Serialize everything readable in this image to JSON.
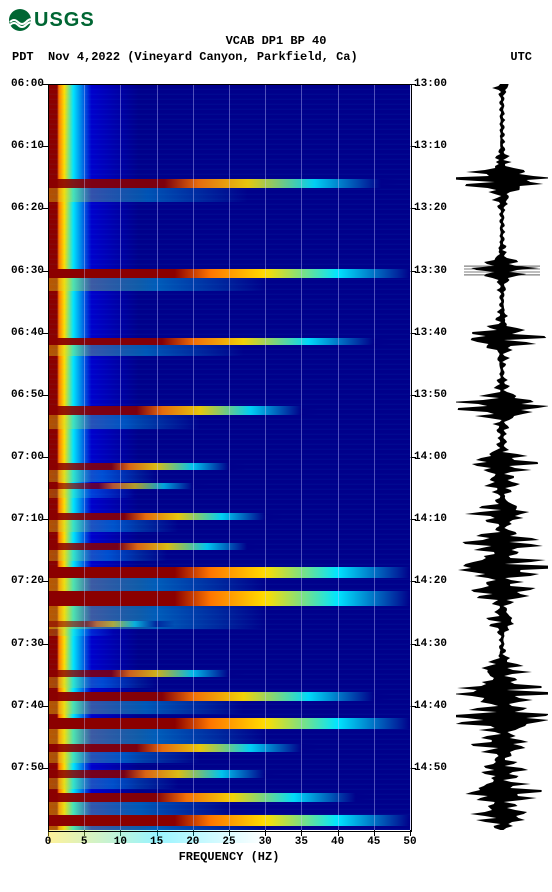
{
  "logo": {
    "text": "USGS",
    "color": "#006633"
  },
  "title": "VCAB DP1 BP 40",
  "subtitle": {
    "tz_left": "PDT",
    "date": "Nov 4,2022 (Vineyard Canyon, Parkfield, Ca)",
    "tz_right": "UTC"
  },
  "axes": {
    "xlabel": "FREQUENCY (HZ)",
    "xmin": 0,
    "xmax": 50,
    "xticks": [
      0,
      5,
      10,
      15,
      20,
      25,
      30,
      35,
      40,
      45,
      50
    ],
    "y_left_ticks": [
      "06:00",
      "06:10",
      "06:20",
      "06:30",
      "06:40",
      "06:50",
      "07:00",
      "07:10",
      "07:20",
      "07:30",
      "07:40",
      "07:50"
    ],
    "y_right_ticks": [
      "13:00",
      "13:10",
      "13:20",
      "13:30",
      "13:40",
      "13:50",
      "14:00",
      "14:10",
      "14:20",
      "14:30",
      "14:40",
      "14:50"
    ],
    "y_positions_pct": [
      0,
      8.33,
      16.67,
      25,
      33.33,
      41.67,
      50,
      58.33,
      66.67,
      75,
      83.33,
      91.67
    ],
    "y_label_fontsize": 11,
    "x_label_fontsize": 12,
    "title_fontsize": 12
  },
  "colors": {
    "bg_deep": "#00008b",
    "bg_mid": "#0000cd",
    "cyan": "#00e5ff",
    "yellow": "#ffdd00",
    "orange": "#ff7700",
    "red": "#8b0000",
    "grid": "#b0b0ff",
    "waveform": "#000000",
    "logo": "#006633"
  },
  "events": [
    {
      "t_pct": 0,
      "height_pct": 100,
      "type": "background"
    },
    {
      "t_pct": 12.8,
      "height_pct": 1.2,
      "intensity": 0.9,
      "reach": 0.92
    },
    {
      "t_pct": 24.8,
      "height_pct": 1.2,
      "intensity": 1.0,
      "reach": 1.0
    },
    {
      "t_pct": 34.0,
      "height_pct": 1.0,
      "intensity": 0.95,
      "reach": 0.9
    },
    {
      "t_pct": 43.2,
      "height_pct": 1.2,
      "intensity": 0.9,
      "reach": 0.7
    },
    {
      "t_pct": 50.8,
      "height_pct": 1.0,
      "intensity": 0.85,
      "reach": 0.5
    },
    {
      "t_pct": 53.5,
      "height_pct": 0.8,
      "intensity": 0.7,
      "reach": 0.4
    },
    {
      "t_pct": 57.5,
      "height_pct": 1.0,
      "intensity": 0.9,
      "reach": 0.6
    },
    {
      "t_pct": 61.5,
      "height_pct": 1.0,
      "intensity": 0.85,
      "reach": 0.55
    },
    {
      "t_pct": 64.8,
      "height_pct": 1.4,
      "intensity": 1.0,
      "reach": 1.0
    },
    {
      "t_pct": 68.0,
      "height_pct": 2.0,
      "intensity": 1.0,
      "reach": 1.0
    },
    {
      "t_pct": 72.0,
      "height_pct": 0.8,
      "intensity": 0.6,
      "reach": 0.3
    },
    {
      "t_pct": 78.5,
      "height_pct": 1.0,
      "intensity": 0.8,
      "reach": 0.5
    },
    {
      "t_pct": 81.5,
      "height_pct": 1.2,
      "intensity": 0.95,
      "reach": 0.9
    },
    {
      "t_pct": 85.0,
      "height_pct": 1.4,
      "intensity": 1.0,
      "reach": 1.0
    },
    {
      "t_pct": 88.5,
      "height_pct": 1.0,
      "intensity": 0.9,
      "reach": 0.7
    },
    {
      "t_pct": 92.0,
      "height_pct": 1.0,
      "intensity": 0.85,
      "reach": 0.6
    },
    {
      "t_pct": 95.0,
      "height_pct": 1.2,
      "intensity": 0.95,
      "reach": 0.85
    },
    {
      "t_pct": 98.0,
      "height_pct": 1.5,
      "intensity": 1.0,
      "reach": 1.0
    }
  ],
  "wave_events": [
    {
      "t_pct": 0,
      "amp": 0.15
    },
    {
      "t_pct": 12.8,
      "amp": 0.9
    },
    {
      "t_pct": 24.8,
      "amp": 0.5
    },
    {
      "t_pct": 34.0,
      "amp": 0.7
    },
    {
      "t_pct": 43.2,
      "amp": 0.85
    },
    {
      "t_pct": 50.8,
      "amp": 0.6
    },
    {
      "t_pct": 53.5,
      "amp": 0.3
    },
    {
      "t_pct": 57.5,
      "amp": 0.5
    },
    {
      "t_pct": 61.5,
      "amp": 0.7
    },
    {
      "t_pct": 64.8,
      "amp": 0.95
    },
    {
      "t_pct": 68.0,
      "amp": 0.6
    },
    {
      "t_pct": 72.0,
      "amp": 0.25
    },
    {
      "t_pct": 78.5,
      "amp": 0.4
    },
    {
      "t_pct": 81.5,
      "amp": 0.9
    },
    {
      "t_pct": 85.0,
      "amp": 1.0
    },
    {
      "t_pct": 88.5,
      "amp": 0.5
    },
    {
      "t_pct": 92.0,
      "amp": 0.4
    },
    {
      "t_pct": 95.0,
      "amp": 0.7
    },
    {
      "t_pct": 98.0,
      "amp": 0.5
    }
  ]
}
